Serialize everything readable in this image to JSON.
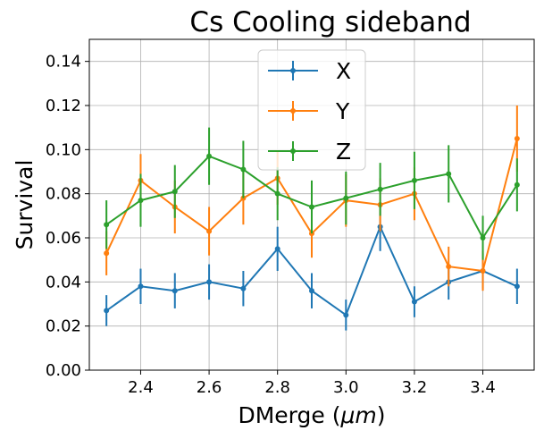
{
  "chart_data": {
    "type": "line",
    "title": "Cs Cooling sideband",
    "xlabel_prefix": "DMerge (",
    "xlabel_unit": "μm",
    "xlabel_suffix": ")",
    "ylabel": "Survival",
    "xlim": [
      2.25,
      3.55
    ],
    "ylim": [
      0.0,
      0.15
    ],
    "grid": true,
    "legend_position": "upper-center",
    "x_ticks": [
      2.4,
      2.6,
      2.8,
      3.0,
      3.2,
      3.4
    ],
    "x_tick_labels": [
      "2.4",
      "2.6",
      "2.8",
      "3.0",
      "3.2",
      "3.4"
    ],
    "y_ticks": [
      0.0,
      0.02,
      0.04,
      0.06,
      0.08,
      0.1,
      0.12,
      0.14
    ],
    "y_tick_labels": [
      "0.00",
      "0.02",
      "0.04",
      "0.06",
      "0.08",
      "0.10",
      "0.12",
      "0.14"
    ],
    "x": [
      2.3,
      2.4,
      2.5,
      2.6,
      2.7,
      2.8,
      2.9,
      3.0,
      3.1,
      3.2,
      3.3,
      3.4,
      3.5
    ],
    "series": [
      {
        "name": "X",
        "color": "#1f77b4",
        "values": [
          0.027,
          0.038,
          0.036,
          0.04,
          0.037,
          0.055,
          0.036,
          0.025,
          0.065,
          0.031,
          0.04,
          0.045,
          0.038
        ],
        "errors": [
          0.007,
          0.008,
          0.008,
          0.008,
          0.008,
          0.01,
          0.008,
          0.007,
          0.011,
          0.007,
          0.008,
          0.008,
          0.008
        ]
      },
      {
        "name": "Y",
        "color": "#ff7f0e",
        "values": [
          0.053,
          0.086,
          0.074,
          0.063,
          0.078,
          0.087,
          0.062,
          0.077,
          0.075,
          0.08,
          0.047,
          0.045,
          0.105
        ],
        "errors": [
          0.01,
          0.012,
          0.012,
          0.011,
          0.012,
          0.012,
          0.011,
          0.012,
          0.012,
          0.012,
          0.009,
          0.009,
          0.015
        ]
      },
      {
        "name": "Z",
        "color": "#2ca02c",
        "values": [
          0.066,
          0.077,
          0.081,
          0.097,
          0.091,
          0.08,
          0.074,
          0.078,
          0.082,
          0.086,
          0.089,
          0.06,
          0.084
        ],
        "errors": [
          0.011,
          0.012,
          0.012,
          0.013,
          0.013,
          0.012,
          0.012,
          0.012,
          0.012,
          0.013,
          0.013,
          0.01,
          0.012
        ]
      }
    ]
  }
}
